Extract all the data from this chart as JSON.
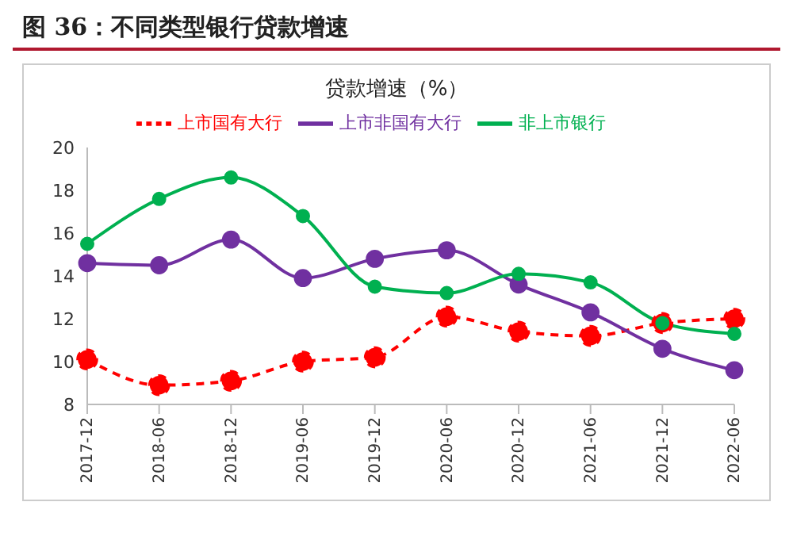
{
  "chart_data": {
    "type": "line",
    "title": "图 36：不同类型银行贷款增速",
    "subtitle": "贷款增速（%）",
    "categories": [
      "2017-12",
      "2018-06",
      "2018-12",
      "2019-06",
      "2019-12",
      "2020-06",
      "2020-12",
      "2021-06",
      "2021-12",
      "2022-06"
    ],
    "series": [
      {
        "name": "上市国有大行",
        "color": "#ff0000",
        "line_style": "dashed",
        "values": [
          10.1,
          8.9,
          9.1,
          10.0,
          10.2,
          12.1,
          11.4,
          11.2,
          11.8,
          12.0
        ]
      },
      {
        "name": "上市非国有大行",
        "color": "#7030a0",
        "line_style": "solid",
        "values": [
          14.6,
          14.5,
          15.7,
          13.9,
          14.8,
          15.2,
          13.6,
          12.3,
          10.6,
          9.6
        ]
      },
      {
        "name": "非上市银行",
        "color": "#00b050",
        "line_style": "solid",
        "values": [
          15.5,
          17.6,
          18.6,
          16.8,
          13.5,
          13.2,
          14.1,
          13.7,
          11.8,
          11.3
        ]
      }
    ],
    "ylim": [
      8,
      20
    ],
    "yticks": [
      8,
      10,
      12,
      14,
      16,
      18,
      20
    ],
    "grid": false,
    "legend": "top",
    "marker": "circle"
  }
}
